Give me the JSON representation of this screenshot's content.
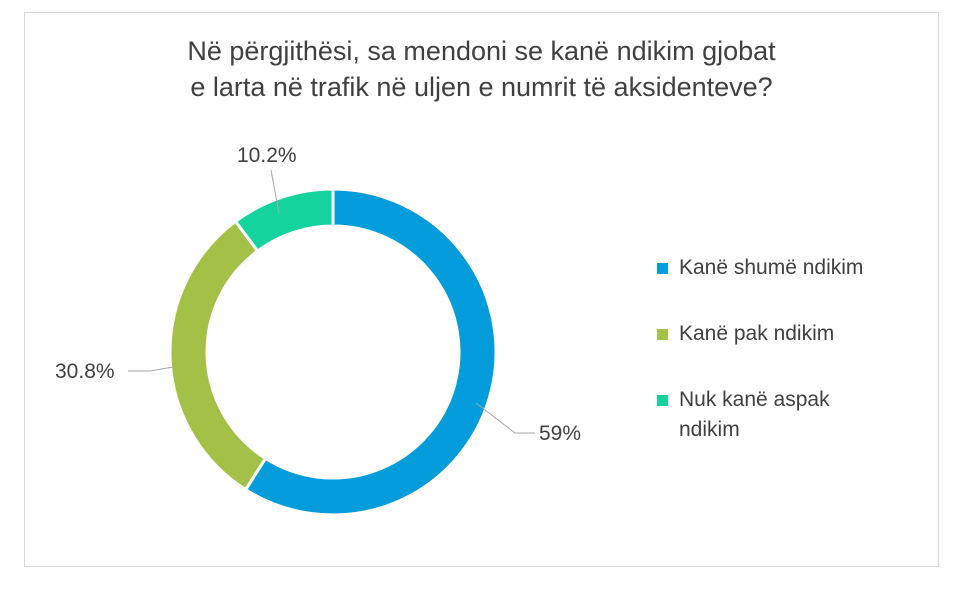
{
  "chart_data": {
    "type": "pie",
    "title_line1": "Në përgjithësi, sa mendoni se kanë ndikim gjobat",
    "title_line2": "e larta në trafik në uljen e numrit të aksidenteve?",
    "series": [
      {
        "name": "Kanë shumë ndikim",
        "value": 59,
        "label": "59%",
        "color": "#049CDB"
      },
      {
        "name": "Kanë pak ndikim",
        "value": 30.8,
        "label": "30.8%",
        "color": "#A2C146"
      },
      {
        "name": "Nuk kanë aspak ndikim",
        "value": 10.2,
        "label": "10.2%",
        "color": "#14D39C"
      }
    ],
    "legend_position": "right",
    "donut": true
  }
}
